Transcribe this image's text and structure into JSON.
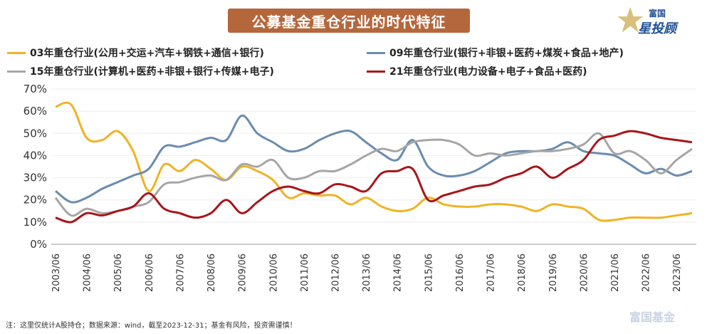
{
  "header": {
    "title": "公募基金重仓行业的时代特征",
    "logo_top": "富国",
    "logo_main": "星投顾"
  },
  "footer": {
    "note": "注：这里仅统计A股持仓；数据来源：wind，截至2023-12-31；基金有风险，投资需谨慎！",
    "watermark": "富国基金"
  },
  "chart_data": {
    "type": "line",
    "ylim": [
      0,
      70
    ],
    "y_ticks": [
      "0%",
      "10%",
      "20%",
      "30%",
      "40%",
      "50%",
      "60%",
      "70%"
    ],
    "x_tick_labels": [
      "2003/06",
      "2004/06",
      "2005/06",
      "2006/06",
      "2007/06",
      "2008/06",
      "2009/06",
      "2010/06",
      "2011/06",
      "2012/06",
      "2013/06",
      "2014/06",
      "2015/06",
      "2016/06",
      "2017/06",
      "2018/06",
      "2019/06",
      "2020/06",
      "2021/06",
      "2022/06",
      "2023/06"
    ],
    "x": [
      "2003/06",
      "2003/12",
      "2004/06",
      "2004/12",
      "2005/06",
      "2005/12",
      "2006/06",
      "2006/12",
      "2007/06",
      "2007/12",
      "2008/06",
      "2008/12",
      "2009/06",
      "2009/12",
      "2010/06",
      "2010/12",
      "2011/06",
      "2011/12",
      "2012/06",
      "2012/12",
      "2013/06",
      "2013/12",
      "2014/06",
      "2014/12",
      "2015/06",
      "2015/12",
      "2016/06",
      "2016/12",
      "2017/06",
      "2017/12",
      "2018/06",
      "2018/12",
      "2019/06",
      "2019/12",
      "2020/06",
      "2020/12",
      "2021/06",
      "2021/12",
      "2022/06",
      "2022/12",
      "2023/06",
      "2023/12"
    ],
    "series": [
      {
        "name": "03年重仓行业(公用+交运+汽车+钢铁+通信+银行)",
        "color": "#f0b323",
        "values": [
          62,
          63,
          48,
          47,
          51,
          42,
          24,
          36,
          33,
          38,
          34,
          29,
          35,
          33,
          29,
          21,
          23,
          22,
          22,
          18,
          21,
          17,
          15,
          16,
          21,
          18,
          17,
          17,
          18,
          18,
          17,
          15,
          18,
          17,
          16,
          11,
          11,
          12,
          12,
          12,
          13,
          14
        ]
      },
      {
        "name": "09年重仓行业(银行+非银+医药+煤炭+食品+地产)",
        "color": "#6a8caf",
        "values": [
          24,
          19,
          21,
          25,
          28,
          31,
          34,
          44,
          44,
          46,
          48,
          47,
          58,
          50,
          46,
          42,
          43,
          47,
          50,
          51,
          46,
          41,
          38,
          47,
          35,
          31,
          31,
          33,
          37,
          41,
          42,
          42,
          43,
          46,
          42,
          41,
          40,
          36,
          32,
          34,
          31,
          33
        ]
      },
      {
        "name": "15年重仓行业(计算机+医药+非银+银行+传媒+电子)",
        "color": "#a6a6a6",
        "values": [
          21,
          13,
          16,
          14,
          15,
          17,
          19,
          27,
          28,
          30,
          31,
          29,
          36,
          35,
          38,
          30,
          30,
          33,
          33,
          36,
          40,
          43,
          42,
          46,
          47,
          47,
          45,
          40,
          41,
          40,
          41,
          42,
          42,
          43,
          45,
          50,
          41,
          42,
          38,
          32,
          38,
          43
        ]
      },
      {
        "name": "21年重仓行业(电力设备+电子+食品+医药)",
        "color": "#a8151a",
        "values": [
          12,
          10,
          14,
          13,
          15,
          17,
          23,
          16,
          14,
          12,
          14,
          20,
          14,
          19,
          24,
          26,
          24,
          23,
          27,
          26,
          24,
          32,
          33,
          34,
          20,
          22,
          24,
          26,
          27,
          30,
          32,
          35,
          30,
          34,
          38,
          47,
          49,
          51,
          50,
          48,
          47,
          46
        ]
      }
    ]
  }
}
